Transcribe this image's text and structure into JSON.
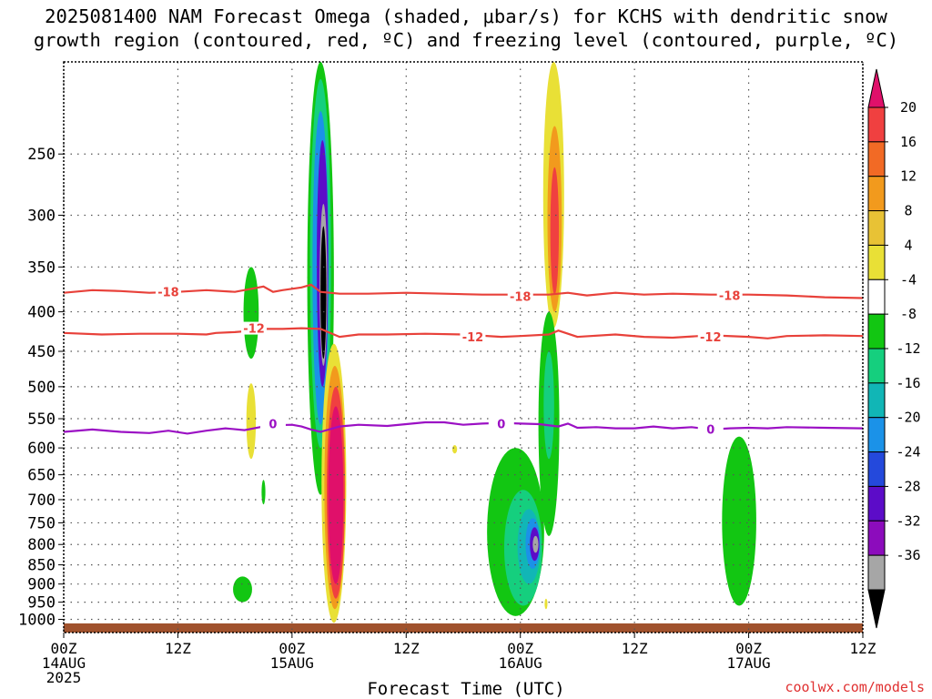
{
  "title_line1": "2025081400 NAM Forecast Omega (shaded, μbar/s) for KCHS with dendritic snow",
  "title_line2": "growth region (contoured, red, ºC) and freezing level (contoured, purple, ºC)",
  "credit": "coolwx.com/models",
  "colors": {
    "red_contour": "#e8413a",
    "purple_contour": "#9b10c4",
    "ground": "#a0522d",
    "grid": "#555555"
  },
  "chart_data": {
    "type": "heatmap",
    "xlabel": "Forecast Time (UTC)",
    "ylabel": "",
    "xlim_hours": [
      0,
      84
    ],
    "ylim_hPa": [
      1040,
      190
    ],
    "y_scale": "log-pressure",
    "x_ticks": [
      {
        "hour": 0,
        "label": "00Z",
        "date": "14AUG",
        "year": "2025"
      },
      {
        "hour": 12,
        "label": "12Z",
        "date": "",
        "year": ""
      },
      {
        "hour": 24,
        "label": "00Z",
        "date": "15AUG",
        "year": ""
      },
      {
        "hour": 36,
        "label": "12Z",
        "date": "",
        "year": ""
      },
      {
        "hour": 48,
        "label": "00Z",
        "date": "16AUG",
        "year": ""
      },
      {
        "hour": 60,
        "label": "12Z",
        "date": "",
        "year": ""
      },
      {
        "hour": 72,
        "label": "00Z",
        "date": "17AUG",
        "year": ""
      },
      {
        "hour": 84,
        "label": "12Z",
        "date": "",
        "year": ""
      }
    ],
    "y_ticks": [
      250,
      300,
      350,
      400,
      450,
      500,
      550,
      600,
      650,
      700,
      750,
      800,
      850,
      900,
      950,
      1000
    ],
    "colorbar": {
      "levels": [
        "20",
        "16",
        "12",
        "8",
        "4",
        "-4",
        "-8",
        "-12",
        "-16",
        "-20",
        "-24",
        "-28",
        "-32",
        "-36"
      ],
      "colors": [
        "#e0106a",
        "#f04040",
        "#f26a25",
        "#f29a1d",
        "#e8c235",
        "#e9e036",
        "#ffffff",
        "#12c612",
        "#15cf7e",
        "#11b6b6",
        "#1b92e8",
        "#2449dc",
        "#5c0cc8",
        "#8c0cbc",
        "#a6a6a6",
        "#000000"
      ]
    },
    "contours": [
      {
        "value": "-18",
        "color": "red",
        "points": [
          [
            0,
            378
          ],
          [
            3,
            375
          ],
          [
            6,
            376
          ],
          [
            9,
            378
          ],
          [
            12,
            377
          ],
          [
            15,
            375
          ],
          [
            18,
            377
          ],
          [
            20,
            373
          ],
          [
            21,
            371
          ],
          [
            22,
            377
          ],
          [
            23,
            375
          ],
          [
            25,
            372
          ],
          [
            26,
            369
          ],
          [
            27,
            377
          ],
          [
            29,
            379
          ],
          [
            32,
            379
          ],
          [
            36,
            378
          ],
          [
            40,
            379
          ],
          [
            44,
            380
          ],
          [
            48,
            380
          ],
          [
            51,
            380
          ],
          [
            53,
            378
          ],
          [
            55,
            381
          ],
          [
            58,
            378
          ],
          [
            61,
            380
          ],
          [
            64,
            379
          ],
          [
            68,
            380
          ],
          [
            72,
            380
          ],
          [
            76,
            381
          ],
          [
            80,
            383
          ],
          [
            84,
            384
          ]
        ],
        "labels": [
          [
            11,
            377
          ],
          [
            48,
            382
          ],
          [
            70,
            381
          ]
        ]
      },
      {
        "value": "-12",
        "color": "red",
        "points": [
          [
            0,
            426
          ],
          [
            4,
            428
          ],
          [
            8,
            427
          ],
          [
            12,
            427
          ],
          [
            15,
            428
          ],
          [
            16,
            426
          ],
          [
            18,
            425
          ],
          [
            20,
            423
          ],
          [
            21,
            421
          ],
          [
            23,
            421
          ],
          [
            25,
            420
          ],
          [
            27,
            421
          ],
          [
            29,
            431
          ],
          [
            31,
            428
          ],
          [
            34,
            428
          ],
          [
            38,
            427
          ],
          [
            42,
            428
          ],
          [
            46,
            431
          ],
          [
            48,
            430
          ],
          [
            51,
            428
          ],
          [
            52,
            423
          ],
          [
            54,
            431
          ],
          [
            58,
            428
          ],
          [
            61,
            431
          ],
          [
            64,
            432
          ],
          [
            68,
            429
          ],
          [
            72,
            431
          ],
          [
            74,
            433
          ],
          [
            76,
            430
          ],
          [
            80,
            429
          ],
          [
            84,
            430
          ]
        ],
        "labels": [
          [
            20,
            420
          ],
          [
            43,
            431
          ],
          [
            68,
            431
          ]
        ]
      },
      {
        "value": "0",
        "color": "purple",
        "points": [
          [
            0,
            572
          ],
          [
            3,
            568
          ],
          [
            6,
            572
          ],
          [
            9,
            574
          ],
          [
            11,
            570
          ],
          [
            13,
            575
          ],
          [
            15,
            570
          ],
          [
            17,
            566
          ],
          [
            19,
            569
          ],
          [
            21,
            563
          ],
          [
            22,
            561
          ],
          [
            24,
            560
          ],
          [
            25,
            563
          ],
          [
            26,
            568
          ],
          [
            27,
            572
          ],
          [
            29,
            563
          ],
          [
            31,
            560
          ],
          [
            34,
            562
          ],
          [
            36,
            559
          ],
          [
            38,
            556
          ],
          [
            40,
            556
          ],
          [
            42,
            560
          ],
          [
            44,
            558
          ],
          [
            46,
            557
          ],
          [
            48,
            558
          ],
          [
            50,
            559
          ],
          [
            52,
            563
          ],
          [
            53,
            558
          ],
          [
            54,
            565
          ],
          [
            56,
            564
          ],
          [
            58,
            566
          ],
          [
            60,
            566
          ],
          [
            62,
            563
          ],
          [
            64,
            566
          ],
          [
            66,
            564
          ],
          [
            68,
            568
          ],
          [
            70,
            566
          ],
          [
            72,
            565
          ],
          [
            74,
            566
          ],
          [
            76,
            564
          ],
          [
            80,
            565
          ],
          [
            84,
            566
          ]
        ],
        "labels": [
          [
            22,
            558
          ],
          [
            46,
            558
          ],
          [
            68,
            567
          ]
        ]
      }
    ],
    "shaded_features": [
      {
        "id": "a1",
        "hour": 19.7,
        "p_top": 350,
        "p_bot": 460,
        "half_width_h": 0.8,
        "color": "#12c612"
      },
      {
        "id": "a2",
        "hour": 19.7,
        "p_top": 495,
        "p_bot": 620,
        "half_width_h": 0.5,
        "color": "#e9e036"
      },
      {
        "id": "a3",
        "hour": 21.0,
        "p_top": 660,
        "p_bot": 710,
        "half_width_h": 0.2,
        "color": "#12c612"
      },
      {
        "id": "a4",
        "hour": 18.8,
        "p_top": 880,
        "p_bot": 950,
        "half_width_h": 1.0,
        "color": "#12c612"
      },
      {
        "id": "b1",
        "hour": 27.0,
        "p_top": 190,
        "p_bot": 690,
        "half_width_h": 1.4,
        "color": "#12c612"
      },
      {
        "id": "b2",
        "hour": 27.0,
        "p_top": 200,
        "p_bot": 600,
        "half_width_h": 1.1,
        "color": "#15cf7e"
      },
      {
        "id": "b3",
        "hour": 27.0,
        "p_top": 220,
        "p_bot": 560,
        "half_width_h": 0.85,
        "color": "#1b92e8"
      },
      {
        "id": "b4",
        "hour": 27.2,
        "p_top": 240,
        "p_bot": 500,
        "half_width_h": 0.6,
        "color": "#5c0cc8"
      },
      {
        "id": "b5",
        "hour": 27.3,
        "p_top": 290,
        "p_bot": 470,
        "half_width_h": 0.4,
        "color": "#a6a6a6"
      },
      {
        "id": "b6",
        "hour": 27.3,
        "p_top": 310,
        "p_bot": 460,
        "half_width_h": 0.3,
        "color": "#000000"
      },
      {
        "id": "c1",
        "hour": 28.4,
        "p_top": 440,
        "p_bot": 1010,
        "half_width_h": 1.3,
        "color": "#e9e036"
      },
      {
        "id": "c2",
        "hour": 28.5,
        "p_top": 470,
        "p_bot": 970,
        "half_width_h": 1.1,
        "color": "#f29a1d"
      },
      {
        "id": "c3",
        "hour": 28.6,
        "p_top": 500,
        "p_bot": 940,
        "half_width_h": 0.95,
        "color": "#f04040"
      },
      {
        "id": "c4",
        "hour": 28.6,
        "p_top": 530,
        "p_bot": 900,
        "half_width_h": 0.8,
        "color": "#e0106a"
      },
      {
        "id": "d1",
        "hour": 51.5,
        "p_top": 190,
        "p_bot": 420,
        "half_width_h": 1.1,
        "color": "#e9e036"
      },
      {
        "id": "d2",
        "hour": 51.6,
        "p_top": 230,
        "p_bot": 400,
        "half_width_h": 0.75,
        "color": "#f29a1d"
      },
      {
        "id": "d3",
        "hour": 51.6,
        "p_top": 260,
        "p_bot": 380,
        "half_width_h": 0.45,
        "color": "#f04040"
      },
      {
        "id": "e1",
        "hour": 41.1,
        "p_top": 595,
        "p_bot": 610,
        "half_width_h": 0.25,
        "color": "#e9e036"
      },
      {
        "id": "f1",
        "hour": 51.0,
        "p_top": 400,
        "p_bot": 780,
        "half_width_h": 1.1,
        "color": "#12c612"
      },
      {
        "id": "f2",
        "hour": 51.0,
        "p_top": 450,
        "p_bot": 620,
        "half_width_h": 0.55,
        "color": "#15cf7e"
      },
      {
        "id": "g1",
        "hour": 47.5,
        "p_top": 600,
        "p_bot": 990,
        "half_width_h": 3.0,
        "color": "#12c612"
      },
      {
        "id": "g2",
        "hour": 48.3,
        "p_top": 680,
        "p_bot": 960,
        "half_width_h": 2.0,
        "color": "#15cf7e"
      },
      {
        "id": "g3",
        "hour": 48.9,
        "p_top": 720,
        "p_bot": 900,
        "half_width_h": 1.2,
        "color": "#11b6b6"
      },
      {
        "id": "g4",
        "hour": 49.3,
        "p_top": 740,
        "p_bot": 860,
        "half_width_h": 0.75,
        "color": "#1b92e8"
      },
      {
        "id": "g5",
        "hour": 49.5,
        "p_top": 760,
        "p_bot": 840,
        "half_width_h": 0.5,
        "color": "#5c0cc8"
      },
      {
        "id": "g6",
        "hour": 49.6,
        "p_top": 780,
        "p_bot": 820,
        "half_width_h": 0.3,
        "color": "#a6a6a6"
      },
      {
        "id": "h1",
        "hour": 71.0,
        "p_top": 580,
        "p_bot": 960,
        "half_width_h": 1.8,
        "color": "#12c612"
      },
      {
        "id": "h2",
        "hour": 50.7,
        "p_top": 940,
        "p_bot": 970,
        "half_width_h": 0.15,
        "color": "#e9e036"
      }
    ]
  }
}
